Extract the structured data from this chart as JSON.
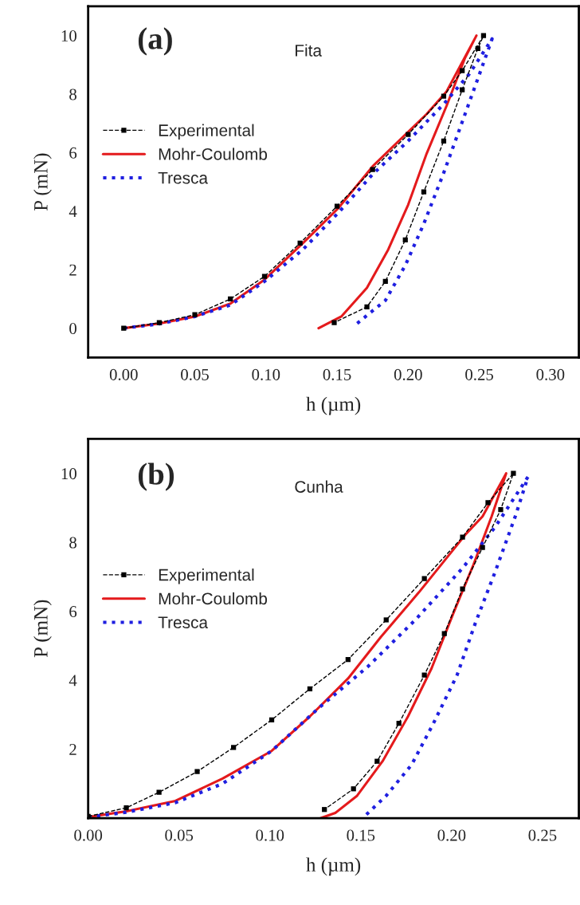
{
  "chart_data": [
    {
      "type": "line",
      "xlabel": "h (µm)",
      "ylabel": "P (mN)",
      "annotations": [
        "(a)",
        "Fita"
      ],
      "xlim": [
        -0.025,
        0.32
      ],
      "ylim": [
        -1,
        11
      ],
      "xticks": [
        {
          "value": 0,
          "label": "0.00"
        },
        0.05,
        {
          "value": 0.1,
          "label": "0.10"
        },
        0.15,
        {
          "value": 0.2,
          "label": "0.20"
        },
        0.25,
        {
          "value": 0.3,
          "label": "0.30"
        }
      ],
      "yticks": [
        0,
        2,
        4,
        6,
        8,
        10
      ],
      "legend": "center left",
      "grid": false,
      "series": [
        {
          "name": "Experimental",
          "color": "#000000",
          "marker": "square",
          "line_style": "dashed",
          "x": [
            0,
            0.025,
            0.05,
            0.075,
            0.099,
            0.124,
            0.15,
            0.175,
            0.2,
            0.225,
            0.238,
            0.253,
            0.249,
            0.238,
            0.225,
            0.211,
            0.198,
            0.184,
            0.171,
            0.148
          ],
          "values": [
            0,
            0.19,
            0.46,
            1.0,
            1.77,
            2.91,
            4.17,
            5.42,
            6.62,
            7.93,
            8.8,
            10,
            9.56,
            8.15,
            6.4,
            4.66,
            3.02,
            1.6,
            0.73,
            0.19
          ]
        },
        {
          "name": "Mohr-Coulomb",
          "color": "#e41a1c",
          "line_style": "solid",
          "x": [
            0,
            0.025,
            0.05,
            0.075,
            0.099,
            0.126,
            0.151,
            0.175,
            0.213,
            0.227,
            0.248,
            0.24,
            0.227,
            0.213,
            0.2,
            0.186,
            0.171,
            0.153,
            0.137
          ],
          "values": [
            0,
            0.16,
            0.4,
            0.84,
            1.66,
            2.91,
            4.11,
            5.53,
            7.32,
            8.09,
            10,
            9.24,
            7.6,
            5.97,
            4.22,
            2.69,
            1.38,
            0.4,
            0
          ]
        },
        {
          "name": "Tresca",
          "color": "#1f1fe0",
          "line_style": "dotted",
          "x": [
            0,
            0.025,
            0.05,
            0.075,
            0.099,
            0.126,
            0.151,
            0.175,
            0.2,
            0.225,
            0.243,
            0.259,
            0.251,
            0.238,
            0.225,
            0.211,
            0.198,
            0.184,
            0.162
          ],
          "values": [
            0,
            0.15,
            0.4,
            0.79,
            1.6,
            2.69,
            3.95,
            5.26,
            6.4,
            7.66,
            8.69,
            9.89,
            8.8,
            7.05,
            5.31,
            3.57,
            2.15,
            0.95,
            0.08
          ]
        }
      ]
    },
    {
      "type": "line",
      "xlabel": "h (µm)",
      "ylabel": "P (mN)",
      "annotations": [
        "(b)",
        "Cunha"
      ],
      "xlim": [
        0,
        0.27
      ],
      "ylim": [
        0,
        11
      ],
      "xticks": [
        {
          "value": 0,
          "label": "0.00"
        },
        0.05,
        {
          "value": 0.1,
          "label": "0.10"
        },
        0.15,
        {
          "value": 0.2,
          "label": "0.20"
        },
        0.25
      ],
      "yticks": [
        2,
        4,
        6,
        8,
        10
      ],
      "legend": "center left",
      "grid": false,
      "series": [
        {
          "name": "Experimental",
          "color": "#000000",
          "marker": "square",
          "line_style": "dashed",
          "x": [
            0,
            0.021,
            0.039,
            0.06,
            0.08,
            0.101,
            0.122,
            0.143,
            0.164,
            0.185,
            0.206,
            0.22,
            0.234,
            0.227,
            0.217,
            0.206,
            0.196,
            0.185,
            0.171,
            0.159,
            0.146,
            0.13
          ],
          "values": [
            0.05,
            0.3,
            0.75,
            1.35,
            2.05,
            2.85,
            3.75,
            4.6,
            5.75,
            6.95,
            8.15,
            9.15,
            10,
            8.95,
            7.85,
            6.65,
            5.35,
            4.15,
            2.75,
            1.65,
            0.85,
            0.25
          ]
        },
        {
          "name": "Mohr-Coulomb",
          "color": "#e41a1c",
          "line_style": "solid",
          "x": [
            0,
            0.021,
            0.048,
            0.074,
            0.101,
            0.122,
            0.143,
            0.161,
            0.182,
            0.208,
            0.217,
            0.23,
            0.222,
            0.212,
            0.201,
            0.189,
            0.176,
            0.162,
            0.148,
            0.136,
            0.128
          ],
          "values": [
            0.03,
            0.2,
            0.5,
            1.15,
            1.95,
            2.95,
            4.05,
            5.25,
            6.55,
            8.25,
            8.75,
            10,
            8.75,
            7.35,
            5.95,
            4.35,
            2.95,
            1.65,
            0.65,
            0.15,
            0
          ]
        },
        {
          "name": "Tresca",
          "color": "#1f1fe0",
          "line_style": "dotted",
          "x": [
            0,
            0.021,
            0.048,
            0.074,
            0.101,
            0.127,
            0.154,
            0.18,
            0.206,
            0.224,
            0.242,
            0.235,
            0.224,
            0.213,
            0.203,
            0.19,
            0.178,
            0.164,
            0.152
          ],
          "values": [
            0.03,
            0.17,
            0.45,
            1.0,
            1.95,
            3.2,
            4.4,
            5.75,
            7.25,
            8.45,
            9.9,
            8.75,
            7.15,
            5.65,
            4.15,
            2.75,
            1.55,
            0.65,
            0.05
          ]
        }
      ]
    }
  ]
}
